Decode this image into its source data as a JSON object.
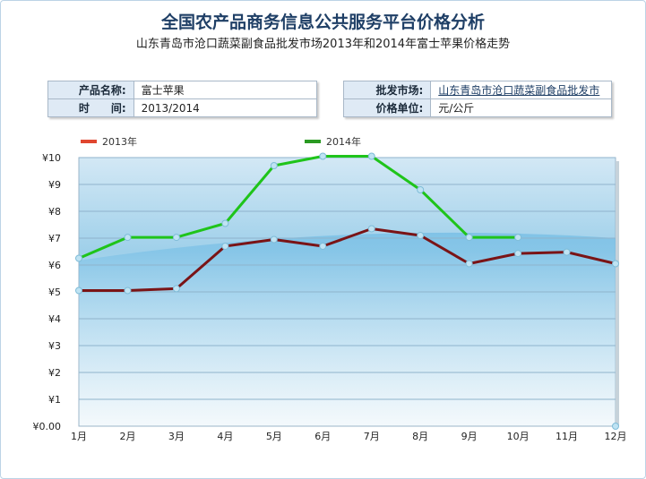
{
  "header": {
    "title": "全国农产品商务信息公共服务平台价格分析",
    "subtitle": "山东青岛市沧口蔬菜副食品批发市场2013年和2014年富士苹果价格走势"
  },
  "info_left": {
    "product_label": "产品名称:",
    "product_value": "富士苹果",
    "time_label": "时　　间:",
    "time_value": "2013/2014"
  },
  "info_right": {
    "market_label": "批发市场:",
    "market_value": "山东青岛市沧口蔬菜副食品批发市",
    "unit_label": "价格单位:",
    "unit_value": "元/公斤"
  },
  "chart_data": {
    "type": "line",
    "categories": [
      "1月",
      "2月",
      "3月",
      "4月",
      "5月",
      "6月",
      "7月",
      "8月",
      "9月",
      "10月",
      "11月",
      "12月"
    ],
    "y_tick_labels": [
      "¥0.00",
      "¥1",
      "¥2",
      "¥3",
      "¥4",
      "¥5",
      "¥6",
      "¥7",
      "¥8",
      "¥9",
      "¥10"
    ],
    "ylim": [
      0,
      10
    ],
    "grid": true,
    "legend_position": "top",
    "series": [
      {
        "name": "2013年",
        "color": "#7a1416",
        "legend_color": "#e0462f",
        "values": [
          5.05,
          5.05,
          5.12,
          6.7,
          6.95,
          6.7,
          7.35,
          7.1,
          6.05,
          6.43,
          6.48,
          6.05
        ]
      },
      {
        "name": "2014年",
        "color": "#1fc41a",
        "legend_color": "#2a9a22",
        "values": [
          6.25,
          7.03,
          7.03,
          7.55,
          9.7,
          10.05,
          10.05,
          8.8,
          7.03,
          7.03,
          null,
          0
        ]
      }
    ]
  }
}
